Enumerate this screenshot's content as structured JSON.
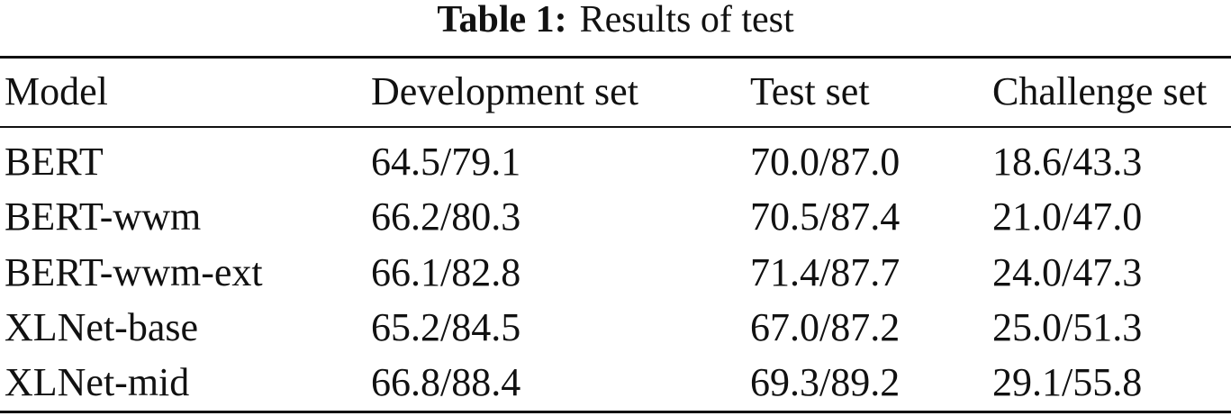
{
  "caption": {
    "label": "Table 1:",
    "text": "Results of test"
  },
  "table": {
    "header": [
      "Model",
      "Development set",
      "Test set",
      "Challenge set"
    ],
    "rows": [
      [
        "BERT",
        "64.5/79.1",
        "70.0/87.0",
        "18.6/43.3"
      ],
      [
        "BERT-wwm",
        "66.2/80.3",
        "70.5/87.4",
        "21.0/47.0"
      ],
      [
        "BERT-wwm-ext",
        "66.1/82.8",
        "71.4/87.7",
        "24.0/47.3"
      ],
      [
        "XLNet-base",
        "65.2/84.5",
        "67.0/87.2",
        "25.0/51.3"
      ],
      [
        "XLNet-mid",
        "66.8/88.4",
        "69.3/89.2",
        "29.1/55.8"
      ]
    ]
  }
}
